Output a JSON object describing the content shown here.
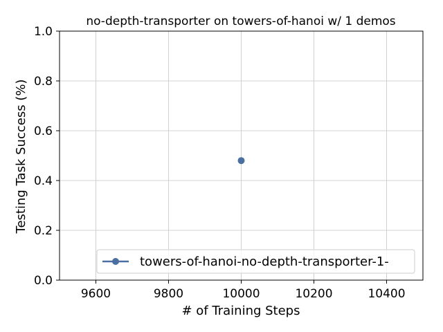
{
  "chart_data": {
    "type": "line",
    "title": "no-depth-transporter on towers-of-hanoi w/ 1 demos",
    "xlabel": "# of Training Steps",
    "ylabel": "Testing Task Success (%)",
    "xlim": [
      9500,
      10500
    ],
    "ylim": [
      0.0,
      1.0
    ],
    "xticks": [
      9600,
      9800,
      10000,
      10200,
      10400
    ],
    "yticks": [
      0.0,
      0.2,
      0.4,
      0.6,
      0.8,
      1.0
    ],
    "grid": true,
    "legend_position": "lower-right",
    "series": [
      {
        "name": "towers-of-hanoi-no-depth-transporter-1-",
        "color": "#4a6fa0",
        "marker": "circle",
        "x": [
          10000
        ],
        "y": [
          0.48
        ]
      }
    ]
  }
}
